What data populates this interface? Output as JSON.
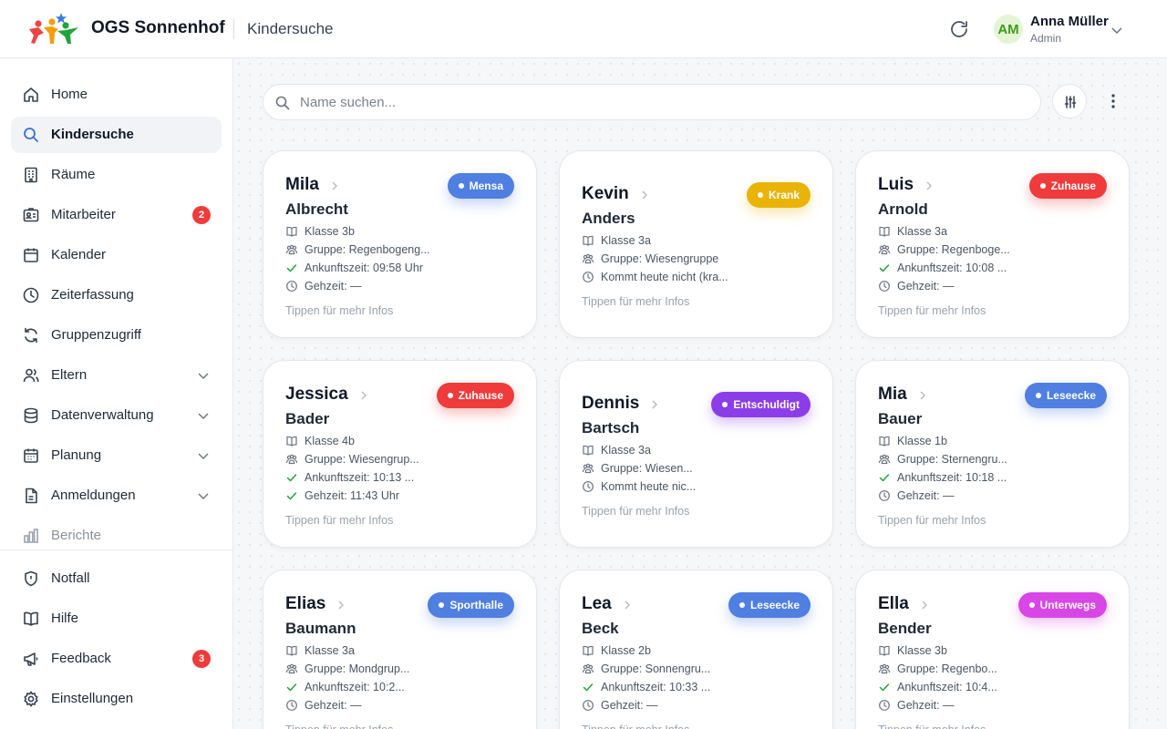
{
  "header": {
    "app_name": "OGS Sonnenhof",
    "page_title": "Kindersuche",
    "user": {
      "initials": "AM",
      "name": "Anna Müller",
      "role": "Admin"
    }
  },
  "sidebar": {
    "items": [
      {
        "label": "Home",
        "icon": "home-icon"
      },
      {
        "label": "Kindersuche",
        "icon": "search-icon",
        "active": true
      },
      {
        "label": "Räume",
        "icon": "building-icon"
      },
      {
        "label": "Mitarbeiter",
        "icon": "id-card-icon",
        "badge": "2"
      },
      {
        "label": "Kalender",
        "icon": "calendar-icon"
      },
      {
        "label": "Zeiterfassung",
        "icon": "clock-icon"
      },
      {
        "label": "Gruppenzugriff",
        "icon": "sync-icon"
      },
      {
        "label": "Eltern",
        "icon": "users-icon",
        "expandable": true
      },
      {
        "label": "Datenverwaltung",
        "icon": "database-icon",
        "expandable": true
      },
      {
        "label": "Planung",
        "icon": "planner-icon",
        "expandable": true
      },
      {
        "label": "Anmeldungen",
        "icon": "document-icon",
        "expandable": true
      },
      {
        "label": "Berichte",
        "icon": "bar-chart-icon",
        "muted": true
      }
    ],
    "bottom_items": [
      {
        "label": "Notfall",
        "icon": "shield-icon"
      },
      {
        "label": "Hilfe",
        "icon": "book-icon"
      },
      {
        "label": "Feedback",
        "icon": "megaphone-icon",
        "badge": "3"
      },
      {
        "label": "Einstellungen",
        "icon": "gear-icon"
      }
    ]
  },
  "search": {
    "placeholder": "Name suchen..."
  },
  "status_colors": {
    "Mensa": "#4f7fe0",
    "Krank": "#eab308",
    "Zuhause": "#ef3b3b",
    "Entschuldigt": "#8b3ee8",
    "Leseecke": "#4f7fe0",
    "Sporthalle": "#4f7fe0",
    "Unterwegs": "#d846e6"
  },
  "children": [
    {
      "first": "Mila",
      "last": "Albrecht",
      "status": "Mensa",
      "klasse": "Klasse 3b",
      "gruppe": "Gruppe: Regenbogeng...",
      "ankunft": "Ankunftszeit: 09:58 Uhr",
      "gehzeit": "Gehzeit: —",
      "hint": "Tippen für mehr Infos"
    },
    {
      "first": "Kevin",
      "last": "Anders",
      "status": "Krank",
      "klasse": "Klasse 3a",
      "gruppe": "Gruppe: Wiesengruppe",
      "absent": "Kommt heute nicht (kra...",
      "hint": "Tippen für mehr Infos"
    },
    {
      "first": "Luis",
      "last": "Arnold",
      "status": "Zuhause",
      "klasse": "Klasse 3a",
      "gruppe": "Gruppe: Regenboge...",
      "ankunft": "Ankunftszeit: 10:08 ...",
      "gehzeit": "Gehzeit: —",
      "hint": "Tippen für mehr Infos"
    },
    {
      "first": "Jessica",
      "last": "Bader",
      "status": "Zuhause",
      "klasse": "Klasse 4b",
      "gruppe": "Gruppe: Wiesengrup...",
      "ankunft": "Ankunftszeit: 10:13 ...",
      "gehzeit": "Gehzeit: 11:43 Uhr",
      "gone": true,
      "hint": "Tippen für mehr Infos"
    },
    {
      "first": "Dennis",
      "last": "Bartsch",
      "status": "Entschuldigt",
      "klasse": "Klasse 3a",
      "gruppe": "Gruppe: Wiesen...",
      "absent": "Kommt heute nic...",
      "hint": "Tippen für mehr Infos"
    },
    {
      "first": "Mia",
      "last": "Bauer",
      "status": "Leseecke",
      "klasse": "Klasse 1b",
      "gruppe": "Gruppe: Sternengru...",
      "ankunft": "Ankunftszeit: 10:18 ...",
      "gehzeit": "Gehzeit: —",
      "hint": "Tippen für mehr Infos"
    },
    {
      "first": "Elias",
      "last": "Baumann",
      "status": "Sporthalle",
      "klasse": "Klasse 3a",
      "gruppe": "Gruppe: Mondgrup...",
      "ankunft": "Ankunftszeit: 10:2...",
      "gehzeit": "Gehzeit: —",
      "hint": "Tippen für mehr Infos"
    },
    {
      "first": "Lea",
      "last": "Beck",
      "status": "Leseecke",
      "klasse": "Klasse 2b",
      "gruppe": "Gruppe: Sonnengru...",
      "ankunft": "Ankunftszeit: 10:33 ...",
      "gehzeit": "Gehzeit: —",
      "hint": "Tippen für mehr Infos"
    },
    {
      "first": "Ella",
      "last": "Bender",
      "status": "Unterwegs",
      "klasse": "Klasse 3b",
      "gruppe": "Gruppe: Regenbo...",
      "ankunft": "Ankunftszeit: 10:4...",
      "gehzeit": "Gehzeit: —",
      "hint": "Tippen für mehr Infos"
    }
  ]
}
